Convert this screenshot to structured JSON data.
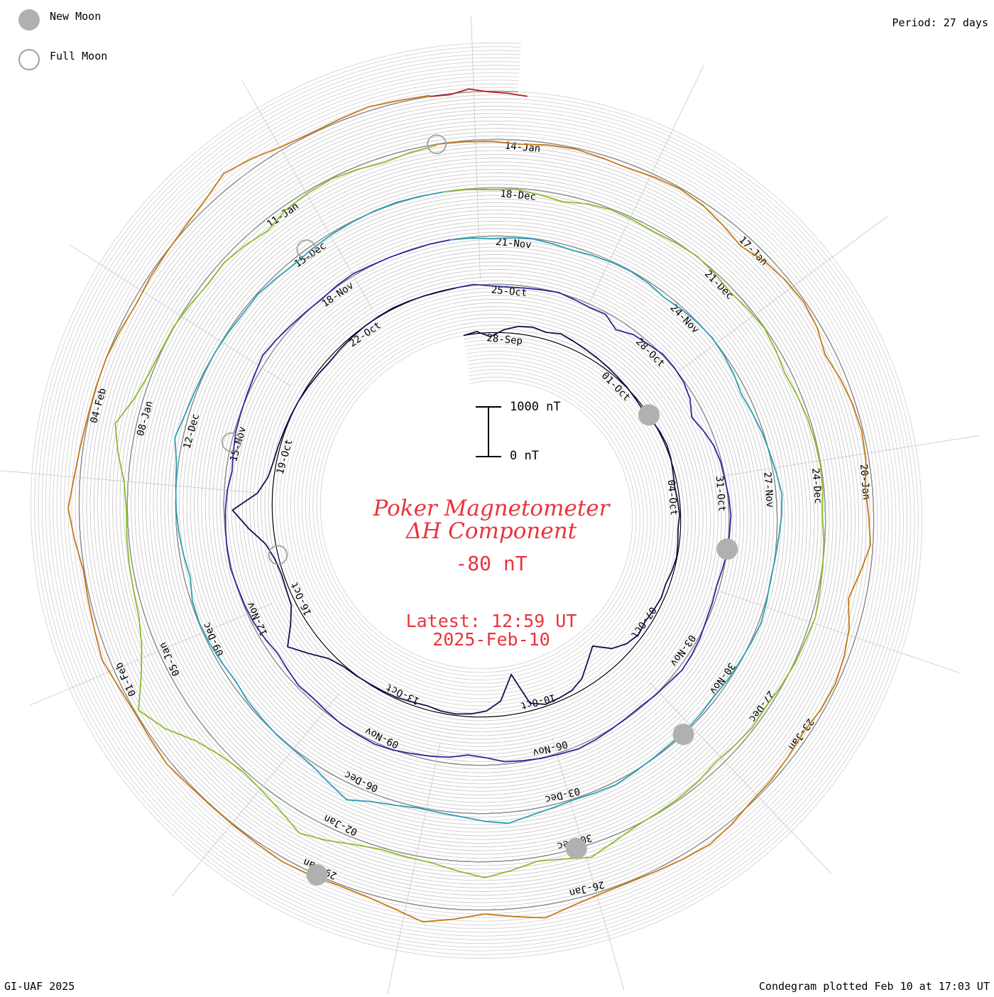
{
  "legend": {
    "new_moon_label": "New Moon",
    "full_moon_label": "Full Moon"
  },
  "period_label": "Period: 27 days",
  "footer_left": "GI-UAF 2025",
  "footer_right": "Condegram plotted Feb 10 at 17:03 UT",
  "colors": {
    "title": "#e8343c",
    "ring_grid": "#c8c8c8",
    "ring_base": "#000000",
    "new_moon_fill": "#b0b0b0",
    "full_moon_stroke": "#a0a0a0"
  },
  "chart_data": {
    "type": "line",
    "title": "Poker Magnetometer",
    "subtitle": "ΔH Component",
    "current_value": "-80 nT",
    "latest_label": "Latest: 12:59 UT",
    "latest_date": "2025-Feb-10",
    "scale_bar": {
      "top_label": "1000 nT",
      "bottom_label": "0 nT"
    },
    "period_days": 27,
    "spiral_start": "2024-09-27",
    "spiral_end": "2025-02-10",
    "date_ticks": [
      "28-Sep",
      "01-Oct",
      "04-Oct",
      "07-Oct",
      "10-Oct",
      "13-Oct",
      "16-Oct",
      "19-Oct",
      "22-Oct",
      "25-Oct",
      "28-Oct",
      "31-Oct",
      "03-Nov",
      "06-Nov",
      "09-Nov",
      "12-Nov",
      "15-Nov",
      "18-Nov",
      "21-Nov",
      "24-Nov",
      "27-Nov",
      "30-Nov",
      "03-Dec",
      "06-Dec",
      "09-Dec",
      "12-Dec",
      "15-Dec",
      "18-Dec",
      "21-Dec",
      "24-Dec",
      "27-Dec",
      "30-Dec",
      "02-Jan",
      "05-Jan",
      "08-Jan",
      "11-Jan",
      "14-Jan",
      "17-Jan",
      "20-Jan",
      "23-Jan",
      "26-Jan",
      "29-Jan",
      "01-Feb",
      "04-Feb"
    ],
    "moon_phases": {
      "new_moon": [
        "2024-10-02",
        "2024-11-01",
        "2024-12-01",
        "2024-12-30",
        "2025-01-29"
      ],
      "full_moon": [
        "2024-10-17",
        "2024-11-15",
        "2024-12-15",
        "2025-01-13"
      ]
    },
    "series": [
      {
        "period_start": "2024-09-27",
        "values": [
          0,
          40,
          -80,
          60,
          150,
          180,
          140,
          200,
          160,
          120,
          90,
          60,
          30,
          10,
          -20,
          -40,
          -10,
          20,
          30,
          10,
          -30,
          -60,
          -40,
          -20,
          -50,
          -30,
          -10,
          -40,
          -80,
          -60,
          -90,
          -120,
          -80,
          -150,
          -300,
          -600,
          -420,
          -200,
          -90,
          -60,
          -40,
          -150,
          -800,
          -300,
          -120,
          -60,
          -30,
          -40,
          -80,
          -60,
          -30,
          -20,
          -10,
          10,
          30,
          120,
          350,
          600,
          300,
          100,
          60,
          40,
          80,
          200,
          500,
          800,
          300,
          120,
          60,
          40,
          20,
          10,
          0,
          -20,
          -40,
          -60,
          -40,
          -20,
          0,
          10,
          20,
          10,
          0,
          -10,
          0
        ]
      },
      {
        "period_start": "2024-10-24",
        "values": [
          0,
          20,
          -30,
          -50,
          -40,
          -20,
          10,
          -30,
          -60,
          -40,
          -200,
          -80,
          -40,
          20,
          10,
          -20,
          -100,
          -250,
          -150,
          -60,
          -20,
          -10,
          20,
          40,
          20,
          10,
          -30,
          -60,
          -40,
          -20,
          30,
          60,
          80,
          30,
          10,
          -20,
          -10,
          10,
          40,
          60,
          30,
          10,
          -20,
          -50,
          -150,
          -200,
          -120,
          -80,
          -40,
          10,
          40,
          20,
          10,
          -30,
          -60,
          -40,
          -90,
          -130,
          -80,
          -40,
          -20,
          -10,
          20,
          10,
          -10,
          -30,
          -60,
          -120,
          -80,
          -30,
          -10,
          20,
          60,
          120,
          80,
          40,
          10,
          -10,
          20,
          40,
          10,
          0,
          -10,
          0,
          0
        ]
      },
      {
        "period_start": "2024-11-20",
        "values": [
          0,
          -20,
          -50,
          -30,
          -10,
          -40,
          -70,
          -40,
          -20,
          -10,
          -30,
          -80,
          -40,
          -10,
          10,
          -20,
          -60,
          -120,
          -80,
          -30,
          10,
          60,
          120,
          90,
          40,
          10,
          -10,
          20,
          50,
          20,
          -10,
          -30,
          -60,
          -40,
          -20,
          -30,
          -10,
          20,
          60,
          40,
          20,
          60,
          120,
          220,
          160,
          80,
          40,
          20,
          80,
          160,
          320,
          180,
          60,
          20,
          10,
          -20,
          -40,
          -90,
          -60,
          -30,
          -10,
          -30,
          -120,
          -80,
          -40,
          -10,
          10,
          40,
          160,
          80,
          40,
          20,
          0,
          -20,
          -40,
          -20,
          -60,
          -90,
          -60,
          -30,
          -10,
          10,
          20,
          10,
          0
        ]
      },
      {
        "period_start": "2024-12-17",
        "values": [
          0,
          -10,
          -40,
          -20,
          -80,
          -140,
          -60,
          -20,
          -40,
          -60,
          -20,
          10,
          -30,
          -80,
          -40,
          -10,
          -60,
          -120,
          -80,
          -40,
          -20,
          -10,
          -30,
          -60,
          -20,
          10,
          40,
          80,
          40,
          20,
          -20,
          -60,
          -40,
          -80,
          -120,
          -60,
          -30,
          -10,
          20,
          120,
          260,
          140,
          80,
          200,
          320,
          200,
          90,
          60,
          40,
          120,
          260,
          380,
          200,
          90,
          40,
          120,
          300,
          650,
          900,
          520,
          260,
          120,
          80,
          60,
          40,
          20,
          80,
          260,
          420,
          180,
          60,
          20,
          10,
          -40,
          -90,
          -60,
          -120,
          -200,
          -80,
          -40,
          -20,
          -60,
          -110,
          -60,
          -20
        ]
      },
      {
        "period_start": "2025-01-13",
        "values": [
          0,
          -20,
          -40,
          -80,
          -40,
          -20,
          -60,
          -90,
          -50,
          -20,
          -60,
          -150,
          -240,
          -120,
          -60,
          -30,
          -80,
          -200,
          -120,
          -60,
          -30,
          -60,
          -140,
          -100,
          -50,
          -200,
          -340,
          -180,
          -90,
          -40,
          -60,
          -120,
          -80,
          -40,
          -20,
          60,
          120,
          80,
          40,
          20,
          40,
          120,
          260,
          160,
          80,
          200,
          320,
          160,
          60,
          30,
          60,
          80,
          40,
          20,
          10,
          30,
          80,
          40,
          20,
          60,
          140,
          80,
          40,
          20,
          120,
          220,
          120,
          60,
          20,
          10,
          0,
          -40,
          -80,
          -40,
          -10,
          40,
          120,
          280,
          180,
          60,
          20,
          40,
          80,
          40,
          20
        ]
      },
      {
        "period_start": "2025-02-09",
        "values": [
          0,
          -20,
          60,
          -10,
          -40,
          -80
        ]
      }
    ]
  }
}
